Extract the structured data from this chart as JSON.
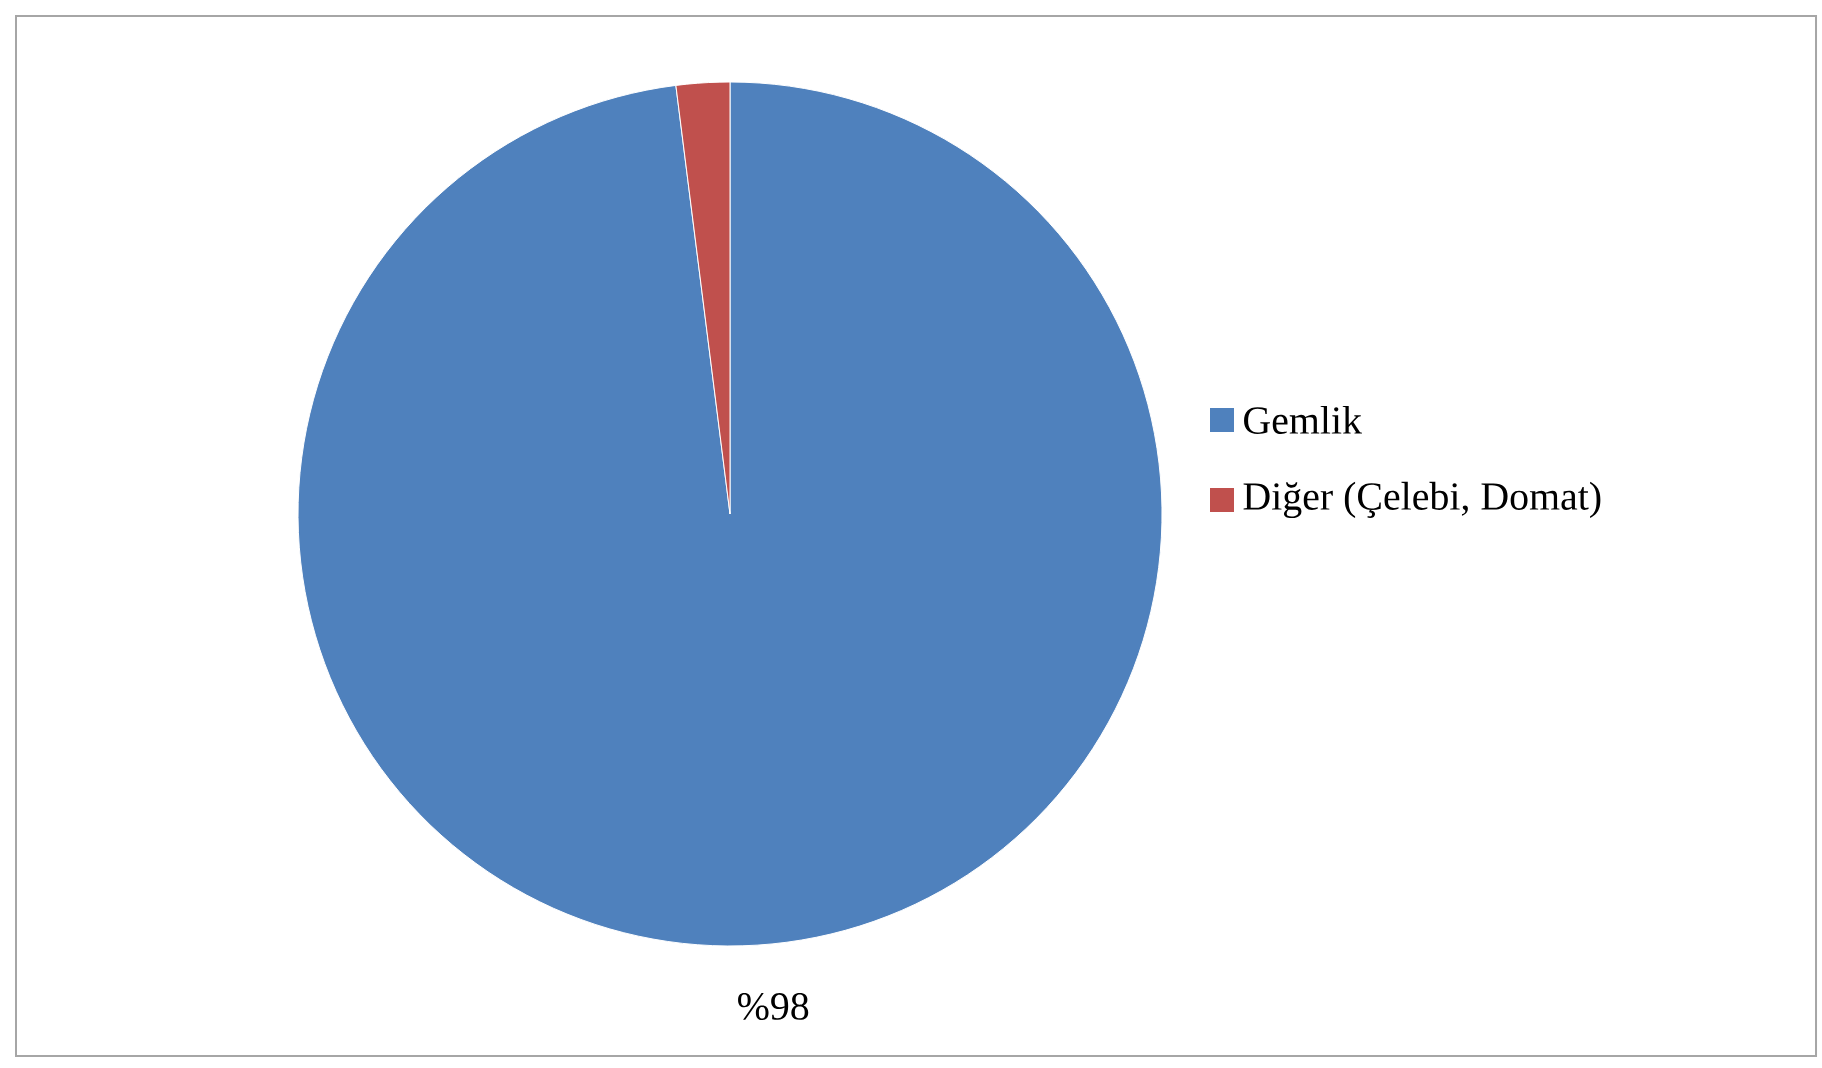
{
  "chart_data": {
    "type": "pie",
    "categories": [
      "Gemlik",
      "Diğer (Çelebi, Domat)"
    ],
    "values": [
      98,
      2
    ],
    "colors": [
      "#4f81bd",
      "#c0504d"
    ],
    "value_labels": [
      "%98",
      null
    ],
    "legend": "right"
  }
}
